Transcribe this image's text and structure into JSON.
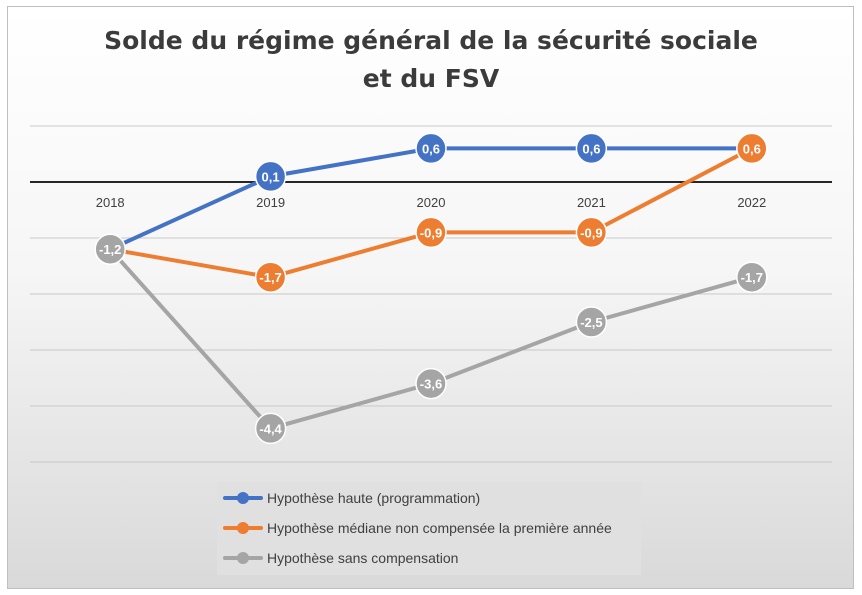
{
  "title_lines": [
    "Solde du régime général de la sécurité sociale",
    "et du FSV"
  ],
  "chart_data": {
    "type": "line",
    "title": "Solde du régime général de la sécurité sociale et du FSV",
    "categories": [
      "2018",
      "2019",
      "2020",
      "2021",
      "2022"
    ],
    "ylim": [
      -5,
      1
    ],
    "grid": true,
    "legend_position": "bottom",
    "series": [
      {
        "name": "Hypothèse haute (programmation)",
        "color": "#4472c4",
        "values": [
          -1.2,
          0.1,
          0.6,
          0.6,
          0.6
        ],
        "labels": [
          "",
          "0,1",
          "0,6",
          "0,6",
          ""
        ]
      },
      {
        "name": "Hypothèse médiane non compensée la première année",
        "color": "#ed7d31",
        "values": [
          -1.2,
          -1.7,
          -0.9,
          -0.9,
          0.6
        ],
        "labels": [
          "",
          "-1,7",
          "-0,9",
          "-0,9",
          "0,6"
        ]
      },
      {
        "name": "Hypothèse sans compensation",
        "color": "#a5a5a5",
        "values": [
          -1.2,
          -4.4,
          -3.6,
          -2.5,
          -1.7
        ],
        "labels": [
          "-1,2",
          "-4,4",
          "-3,6",
          "-2,5",
          "-1,7"
        ]
      }
    ]
  }
}
